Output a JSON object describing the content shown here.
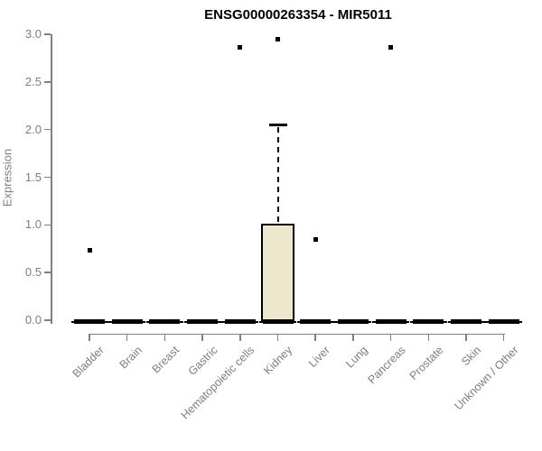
{
  "chart_data": {
    "type": "box",
    "title": "ENSG00000263354 - MIR5011",
    "xlabel": "",
    "ylabel": "Expression",
    "ylim": [
      0,
      3
    ],
    "yticks": [
      "0.0",
      "0.5",
      "1.0",
      "1.5",
      "2.0",
      "2.5",
      "3.0"
    ],
    "grid": false,
    "legend": "none",
    "colors": {
      "box_fill": "#ece7cd",
      "box_border": "#000000",
      "axis": "#808080",
      "tick_label": "#7e7e7e",
      "title": "#000000"
    },
    "categories": [
      "Bladder",
      "Brain",
      "Breast",
      "Gastric",
      "Hematopoietic cells",
      "Kidney",
      "Liver",
      "Lung",
      "Pancreas",
      "Prostate",
      "Skin",
      "Unknown / Other"
    ],
    "boxes": [
      {
        "category": "Bladder",
        "whisker_low": 0,
        "q1": 0,
        "median": 0,
        "q3": 0,
        "whisker_high": 0,
        "outliers": [
          0.73
        ]
      },
      {
        "category": "Brain",
        "whisker_low": 0,
        "q1": 0,
        "median": 0,
        "q3": 0,
        "whisker_high": 0,
        "outliers": []
      },
      {
        "category": "Breast",
        "whisker_low": 0,
        "q1": 0,
        "median": 0,
        "q3": 0,
        "whisker_high": 0,
        "outliers": []
      },
      {
        "category": "Gastric",
        "whisker_low": 0,
        "q1": 0,
        "median": 0,
        "q3": 0,
        "whisker_high": 0,
        "outliers": []
      },
      {
        "category": "Hematopoietic cells",
        "whisker_low": 0,
        "q1": 0,
        "median": 0,
        "q3": 0,
        "whisker_high": 0,
        "outliers": [
          2.86
        ]
      },
      {
        "category": "Kidney",
        "whisker_low": 0,
        "q1": 0,
        "median": 0,
        "q3": 1.0,
        "whisker_high": 2.05,
        "outliers": [
          2.95
        ]
      },
      {
        "category": "Liver",
        "whisker_low": 0,
        "q1": 0,
        "median": 0,
        "q3": 0,
        "whisker_high": 0,
        "outliers": [
          0.85
        ]
      },
      {
        "category": "Lung",
        "whisker_low": 0,
        "q1": 0,
        "median": 0,
        "q3": 0,
        "whisker_high": 0,
        "outliers": []
      },
      {
        "category": "Pancreas",
        "whisker_low": 0,
        "q1": 0,
        "median": 0,
        "q3": 0,
        "whisker_high": 0,
        "outliers": [
          2.86
        ]
      },
      {
        "category": "Prostate",
        "whisker_low": 0,
        "q1": 0,
        "median": 0,
        "q3": 0,
        "whisker_high": 0,
        "outliers": []
      },
      {
        "category": "Skin",
        "whisker_low": 0,
        "q1": 0,
        "median": 0,
        "q3": 0,
        "whisker_high": 0,
        "outliers": []
      },
      {
        "category": "Unknown / Other",
        "whisker_low": 0,
        "q1": 0,
        "median": 0,
        "q3": 0,
        "whisker_high": 0,
        "outliers": []
      }
    ]
  }
}
